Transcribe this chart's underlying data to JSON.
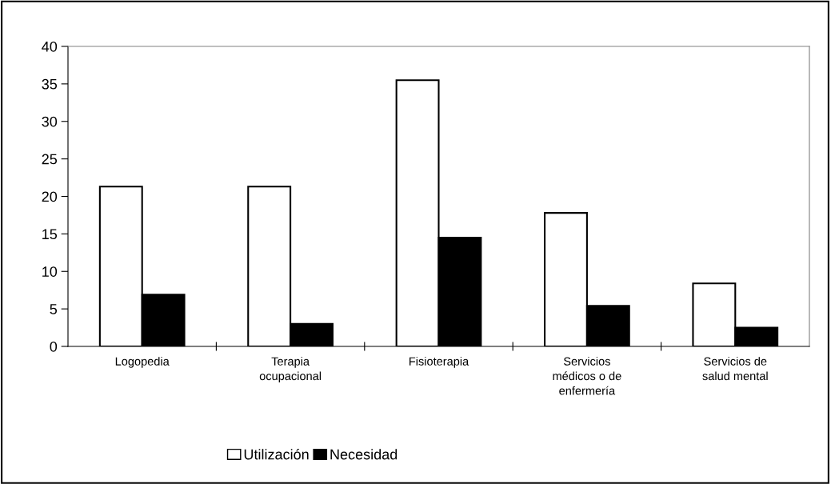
{
  "chart_data": {
    "type": "bar",
    "categories": [
      "Logopedia",
      "Terapia\nocupacional",
      "Fisioterapia",
      "Servicios\nmédicos o de\nenfermería",
      "Servicios de\nsalud mental"
    ],
    "series": [
      {
        "name": "Utilización",
        "color": "#ffffff",
        "values": [
          21.3,
          21.3,
          35.5,
          17.8,
          8.4
        ]
      },
      {
        "name": "Necesidad",
        "color": "#000000",
        "values": [
          6.9,
          3.0,
          14.5,
          5.4,
          2.5
        ]
      }
    ],
    "ylim": [
      0,
      40
    ],
    "yticks": [
      0,
      5,
      10,
      15,
      20,
      25,
      30,
      35,
      40
    ],
    "grid": false,
    "legend": "bottom"
  }
}
